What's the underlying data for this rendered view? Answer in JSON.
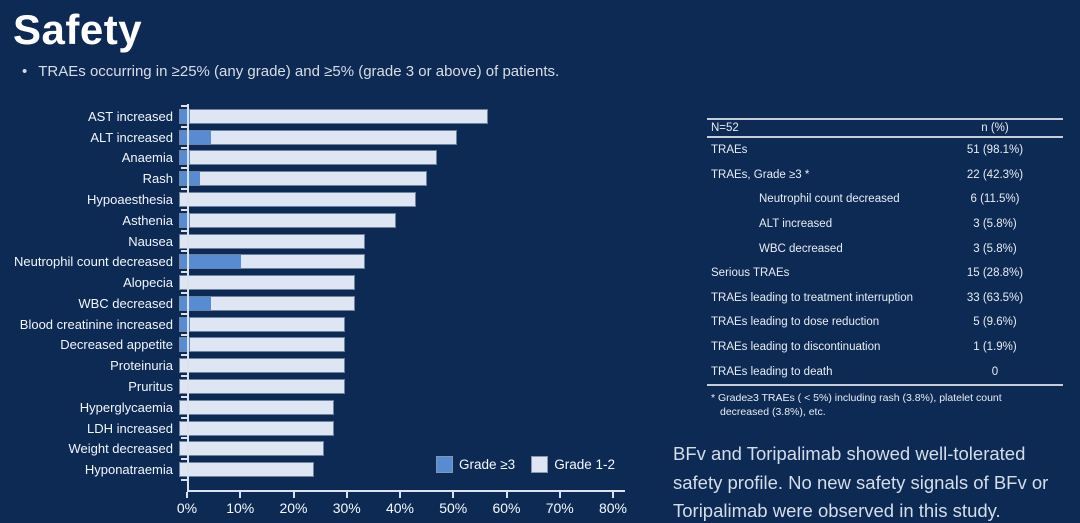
{
  "slide": {
    "title": "Safety",
    "bullet": "TRAEs occurring in ≥25% (any grade) and ≥5% (grade 3 or above) of patients.",
    "background_color": "#0c2a54"
  },
  "chart_data": {
    "type": "bar",
    "orientation": "horizontal",
    "stacked": true,
    "categories": [
      "AST increased",
      "ALT increased",
      "Anaemia",
      "Rash",
      "Hypoaesthesia",
      "Asthenia",
      "Nausea",
      "Neutrophil count decreased",
      "Alopecia",
      "WBC decreased",
      "Blood creatinine increased",
      "Decreased appetite",
      "Proteinuria",
      "Pruritus",
      "Hyperglycaemia",
      "LDH increased",
      "Weight decreased",
      "Hyponatraemia"
    ],
    "series": [
      {
        "name": "Grade ≥3",
        "color": "#578cd2",
        "values": [
          1.9,
          5.8,
          1.9,
          3.8,
          0,
          1.9,
          0,
          11.5,
          0,
          5.8,
          1.9,
          1.9,
          0,
          0,
          0,
          0,
          0,
          0
        ]
      },
      {
        "name": "Grade 1-2",
        "color": "#dde6f2",
        "values": [
          55.8,
          46.1,
          46.2,
          42.4,
          44.2,
          38.5,
          34.6,
          23.1,
          32.7,
          26.9,
          28.9,
          28.9,
          30.8,
          30.8,
          28.8,
          28.8,
          26.9,
          25.0
        ]
      }
    ],
    "xlim": [
      0,
      80
    ],
    "x_ticks": [
      "0%",
      "10%",
      "20%",
      "30%",
      "40%",
      "50%",
      "60%",
      "70%",
      "80%"
    ],
    "grid": false,
    "legend_position": "bottom-right"
  },
  "table": {
    "header": {
      "col1": "N=52",
      "col2": "n (%)"
    },
    "rows": [
      {
        "label": "TRAEs",
        "value": "51 (98.1%)",
        "indent": false
      },
      {
        "label": "TRAEs, Grade ≥3 *",
        "value": "22 (42.3%)",
        "indent": false
      },
      {
        "label": "Neutrophil count decreased",
        "value": "6 (11.5%)",
        "indent": true
      },
      {
        "label": "ALT increased",
        "value": "3 (5.8%)",
        "indent": true
      },
      {
        "label": "WBC decreased",
        "value": "3 (5.8%)",
        "indent": true
      },
      {
        "label": "Serious TRAEs",
        "value": "15 (28.8%)",
        "indent": false
      },
      {
        "label": "TRAEs leading to treatment interruption",
        "value": "33 (63.5%)",
        "indent": false
      },
      {
        "label": "TRAEs leading to dose reduction",
        "value": "5 (9.6%)",
        "indent": false
      },
      {
        "label": "TRAEs leading to discontinuation",
        "value": "1 (1.9%)",
        "indent": false
      },
      {
        "label": "TRAEs leading to death",
        "value": "0",
        "indent": false
      }
    ],
    "footnote_lines": [
      "* Grade≥3 TRAEs ( < 5%) including rash (3.8%), platelet count",
      "decreased (3.8%), etc."
    ]
  },
  "summary": {
    "lines": [
      "BFv and Toripalimab showed well-tolerated",
      "safety profile. No new safety signals of BFv or",
      "Toripalimab were observed in this study."
    ]
  }
}
